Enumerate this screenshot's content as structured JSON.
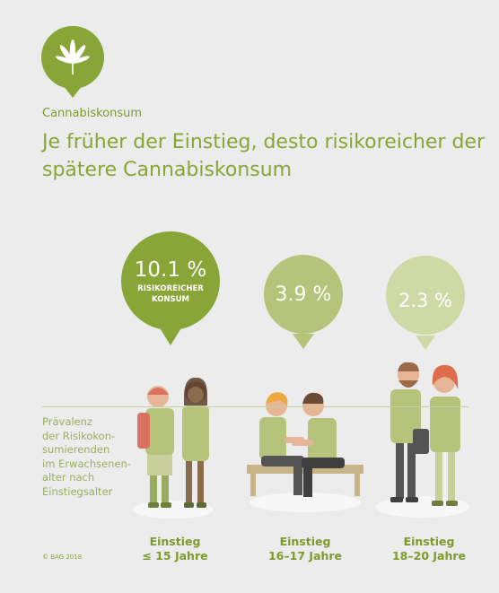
{
  "header": {
    "kicker": "Cannabiskonsum",
    "title": "Je früher der Einstieg, desto risikoreicher der spätere Cannabiskonsum",
    "logo_icon": "cannabis-leaf-icon"
  },
  "colors": {
    "dark": "#8aa537",
    "mid": "#b5c47a",
    "light": "#cfd9a6",
    "background": "#ececec"
  },
  "chart_data": {
    "type": "bar",
    "ylabel": "Prävalenz\nder Risikokon-\nsumierenden\nim Erwachsenen-\nalter nach\nEinstiegsalter",
    "categories": [
      {
        "line1": "Einstieg",
        "line2": "≤ 15 Jahre"
      },
      {
        "line1": "Einstieg",
        "line2": "16–17 Jahre"
      },
      {
        "line1": "Einstieg",
        "line2": "18–20 Jahre"
      }
    ],
    "values": [
      10.1,
      3.9,
      2.3
    ],
    "value_labels": [
      "10.1 %",
      "3.9 %",
      "2.3 %"
    ],
    "annotation": {
      "line1": "RISIKOREICHER",
      "line2": "KONSUM"
    }
  },
  "footer": {
    "copyright": "© BAG 2018"
  }
}
